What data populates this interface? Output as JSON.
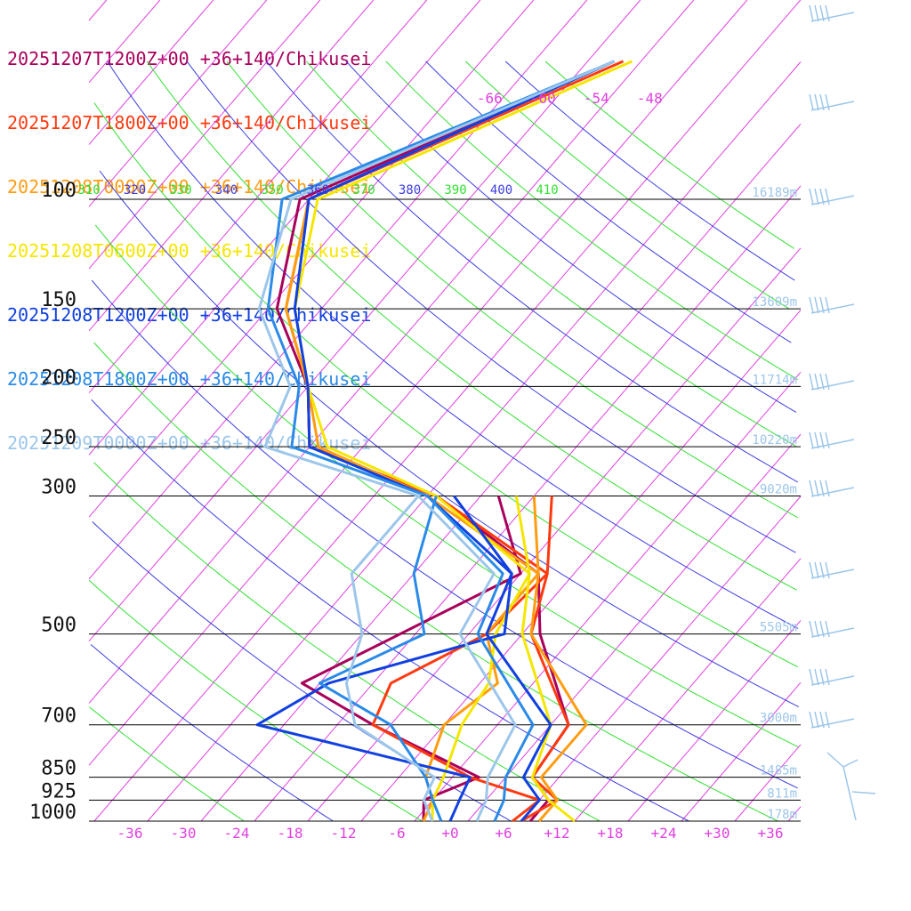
{
  "chart_data": {
    "type": "line",
    "legend": [
      {
        "label": "20251207T1200Z+00 +36+140/Chikusei",
        "color": "#a8005a"
      },
      {
        "label": "20251207T1800Z+00 +36+140/Chikusei",
        "color": "#ff3a10"
      },
      {
        "label": "20251208T0000Z+00 +36+140/Chikusei",
        "color": "#ff9c10"
      },
      {
        "label": "20251208T0600Z+00 +36+140/Chikusei",
        "color": "#f5e600"
      },
      {
        "label": "20251208T1200Z+00 +36+140/Chikusei",
        "color": "#1040e0"
      },
      {
        "label": "20251208T1800Z+00 +36+140/Chikusei",
        "color": "#2a8ae8"
      },
      {
        "label": "20251209T0000Z+00 +36+140/Chikusei",
        "color": "#9cc6ea"
      }
    ],
    "pressure_levels": [
      {
        "p": 100,
        "label": "100",
        "height": "16189m"
      },
      {
        "p": 150,
        "label": "150",
        "height": "13609m"
      },
      {
        "p": 200,
        "label": "200",
        "height": "11714m"
      },
      {
        "p": 250,
        "label": "250",
        "height": "10220m"
      },
      {
        "p": 300,
        "label": "300",
        "height": "9020m"
      },
      {
        "p": 500,
        "label": "500",
        "height": "5505m"
      },
      {
        "p": 700,
        "label": "700",
        "height": "3000m"
      },
      {
        "p": 850,
        "label": "850",
        "height": "1485m"
      },
      {
        "p": 925,
        "label": "925",
        "height": "811m"
      },
      {
        "p": 1000,
        "label": "1000",
        "height": "178m"
      }
    ],
    "x_ticks": [
      "-36",
      "-30",
      "-24",
      "-18",
      "-12",
      "-6",
      "+0",
      "+6",
      "+12",
      "+18",
      "+24",
      "+30",
      "+36"
    ],
    "upper_temp_labels": [
      "-66",
      "-60",
      "-54",
      "-48"
    ],
    "theta_labels": [
      "310",
      "320",
      "330",
      "340",
      "350",
      "360",
      "370",
      "380",
      "390",
      "400",
      "410"
    ],
    "xlim": [
      -40,
      40
    ],
    "plim": [
      1000,
      100
    ],
    "grid": true,
    "series": [
      {
        "color": "#a8005a",
        "temps": [
          [
            "1000",
            9
          ],
          [
            "925",
            9
          ],
          [
            "850",
            5
          ],
          [
            "700",
            4
          ],
          [
            "500",
            -8
          ],
          [
            "400",
            -14
          ],
          [
            "300",
            -33
          ],
          [
            "250",
            -52
          ],
          [
            "200",
            -58
          ],
          [
            "150",
            -69
          ],
          [
            "100",
            -77
          ],
          [
            "60",
            -55
          ]
        ],
        "dewpoints": [
          [
            "1000",
            -3
          ],
          [
            "925",
            -5
          ],
          [
            "850",
            -1
          ],
          [
            "700",
            -18
          ],
          [
            "600",
            -30
          ],
          [
            "400",
            -16
          ],
          [
            "300",
            -26
          ]
        ]
      },
      {
        "color": "#ff3a10",
        "temps": [
          [
            "1000",
            8
          ],
          [
            "925",
            10
          ],
          [
            "850",
            5
          ],
          [
            "700",
            4
          ],
          [
            "500",
            -9
          ],
          [
            "400",
            -13
          ],
          [
            "300",
            -33
          ],
          [
            "250",
            -52
          ],
          [
            "200",
            -58
          ],
          [
            "150",
            -68
          ],
          [
            "100",
            -76
          ],
          [
            "60",
            -54
          ]
        ],
        "dewpoints": [
          [
            "1000",
            7
          ],
          [
            "925",
            8
          ],
          [
            "850",
            -2
          ],
          [
            "700",
            -18
          ],
          [
            "600",
            -20
          ],
          [
            "500",
            -14
          ],
          [
            "400",
            -13
          ],
          [
            "300",
            -20
          ]
        ]
      },
      {
        "color": "#ff9c10",
        "temps": [
          [
            "1000",
            10
          ],
          [
            "925",
            10
          ],
          [
            "850",
            6
          ],
          [
            "700",
            6
          ],
          [
            "500",
            -9
          ],
          [
            "400",
            -14
          ],
          [
            "300",
            -34
          ],
          [
            "250",
            -51
          ],
          [
            "200",
            -58
          ],
          [
            "150",
            -68
          ],
          [
            "100",
            -76
          ],
          [
            "60",
            -55
          ]
        ],
        "dewpoints": [
          [
            "1000",
            -3
          ],
          [
            "925",
            -4
          ],
          [
            "850",
            -7
          ],
          [
            "700",
            -10
          ],
          [
            "600",
            -8
          ],
          [
            "500",
            -14
          ],
          [
            "400",
            -14
          ],
          [
            "300",
            -22
          ]
        ]
      },
      {
        "color": "#f5e600",
        "temps": [
          [
            "1000",
            14
          ],
          [
            "925",
            9
          ],
          [
            "850",
            5
          ],
          [
            "700",
            2
          ],
          [
            "500",
            -10
          ],
          [
            "400",
            -15
          ],
          [
            "300",
            -33
          ],
          [
            "250",
            -50
          ],
          [
            "200",
            -58
          ],
          [
            "150",
            -67
          ],
          [
            "100",
            -75
          ],
          [
            "60",
            -53
          ]
        ],
        "dewpoints": [
          [
            "1000",
            -2
          ],
          [
            "925",
            -4
          ],
          [
            "850",
            -5
          ],
          [
            "700",
            -8
          ],
          [
            "600",
            -9
          ],
          [
            "500",
            -13
          ],
          [
            "400",
            -15
          ],
          [
            "300",
            -24
          ]
        ]
      },
      {
        "color": "#1040e0",
        "temps": [
          [
            "1000",
            8
          ],
          [
            "925",
            8
          ],
          [
            "850",
            4
          ],
          [
            "700",
            2
          ],
          [
            "500",
            -14
          ],
          [
            "400",
            -17
          ],
          [
            "300",
            -34
          ],
          [
            "250",
            -52
          ],
          [
            "200",
            -58
          ],
          [
            "150",
            -67
          ],
          [
            "100",
            -76
          ],
          [
            "60",
            -55
          ]
        ],
        "dewpoints": [
          [
            "1000",
            0
          ],
          [
            "925",
            -1
          ],
          [
            "850",
            -2
          ],
          [
            "700",
            -31
          ],
          [
            "600",
            -27
          ],
          [
            "500",
            -12
          ],
          [
            "400",
            -17
          ],
          [
            "300",
            -31
          ]
        ]
      },
      {
        "color": "#2a8ae8",
        "temps": [
          [
            "1000",
            5
          ],
          [
            "925",
            4
          ],
          [
            "850",
            2
          ],
          [
            "700",
            0
          ],
          [
            "500",
            -15
          ],
          [
            "400",
            -18
          ],
          [
            "300",
            -34
          ],
          [
            "250",
            -54
          ],
          [
            "200",
            -59
          ],
          [
            "150",
            -70
          ],
          [
            "100",
            -79
          ],
          [
            "60",
            -55
          ]
        ],
        "dewpoints": [
          [
            "1000",
            -1
          ],
          [
            "925",
            -4
          ],
          [
            "850",
            -7
          ],
          [
            "700",
            -16
          ],
          [
            "600",
            -28
          ],
          [
            "500",
            -21
          ],
          [
            "400",
            -28
          ],
          [
            "300",
            -33
          ]
        ]
      },
      {
        "color": "#9cc6ea",
        "temps": [
          [
            "1000",
            3
          ],
          [
            "925",
            2
          ],
          [
            "850",
            0
          ],
          [
            "700",
            -2
          ],
          [
            "500",
            -17
          ],
          [
            "400",
            -19
          ],
          [
            "300",
            -35
          ],
          [
            "250",
            -57
          ],
          [
            "200",
            -60
          ],
          [
            "150",
            -71
          ],
          [
            "100",
            -78
          ],
          [
            "60",
            -55
          ]
        ],
        "dewpoints": [
          [
            "1000",
            -2
          ],
          [
            "925",
            -5
          ],
          [
            "850",
            -6
          ],
          [
            "700",
            -20
          ],
          [
            "600",
            -25
          ],
          [
            "500",
            -28
          ],
          [
            "400",
            -35
          ],
          [
            "300",
            -35
          ]
        ]
      }
    ]
  }
}
